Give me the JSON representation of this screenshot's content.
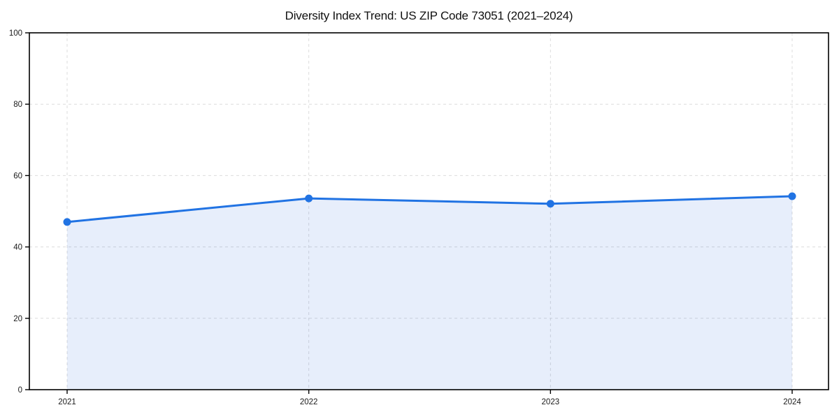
{
  "chart_data": {
    "type": "area",
    "title": "Diversity Index Trend: US ZIP Code 73051 (2021–2024)",
    "x": [
      "2021",
      "2022",
      "2023",
      "2024"
    ],
    "values": [
      47.0,
      53.6,
      52.1,
      54.2
    ],
    "xlabel": "",
    "ylabel": "",
    "ylim": [
      0,
      100
    ],
    "yticks": [
      0,
      20,
      40,
      60,
      80,
      100
    ],
    "grid": true,
    "grid_style": "dashed",
    "legend": "none",
    "line_color": "#2173e3",
    "marker_color": "#2173e3",
    "fill_color": "rgba(38, 102, 221, 0.11)",
    "grid_color": "#dcdcdc",
    "spine_color": "#000000",
    "tick_label_color": "#1a1a1a",
    "background": "#ffffff"
  }
}
